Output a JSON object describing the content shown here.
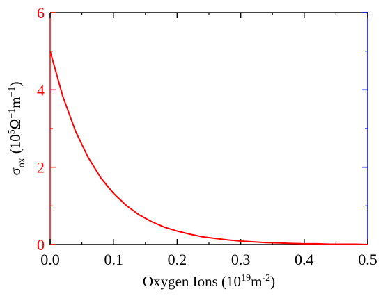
{
  "chart_data": {
    "type": "line",
    "xlabel": {
      "main": "Oxygen Ions (10",
      "exp": "19",
      "unit": "m",
      "unit_exp": "-2",
      "close": ")"
    },
    "ylabel": {
      "symbol": "σ",
      "sub": "ox",
      "open": "(10",
      "exp1": "5",
      "omega": "Ω",
      "exp2": "−1",
      "m": "m",
      "exp3": "−1",
      "close": ")"
    },
    "xlim": [
      0,
      0.5
    ],
    "ylim": [
      0,
      6
    ],
    "x_ticks": [
      "0.0",
      "0.1",
      "0.2",
      "0.3",
      "0.4",
      "0.5"
    ],
    "y_ticks": [
      "0",
      "2",
      "4",
      "6"
    ],
    "grid": false,
    "series": [
      {
        "color": "#ff0000",
        "x": [
          0.0,
          0.02,
          0.04,
          0.06,
          0.08,
          0.1,
          0.12,
          0.14,
          0.16,
          0.18,
          0.2,
          0.22,
          0.24,
          0.26,
          0.28,
          0.3,
          0.32,
          0.34,
          0.36,
          0.38,
          0.4,
          0.42,
          0.44,
          0.46,
          0.48,
          0.5
        ],
        "y": [
          5.0,
          3.83,
          2.93,
          2.25,
          1.72,
          1.32,
          1.01,
          0.77,
          0.59,
          0.45,
          0.35,
          0.27,
          0.2,
          0.16,
          0.12,
          0.09,
          0.07,
          0.05,
          0.04,
          0.03,
          0.02,
          0.02,
          0.01,
          0.01,
          0.01,
          0.0
        ]
      }
    ]
  },
  "colors": {
    "left_axis": "#ff0000",
    "right_axis": "#0000ff",
    "frame": "#000000",
    "curve": "#ff0000"
  }
}
